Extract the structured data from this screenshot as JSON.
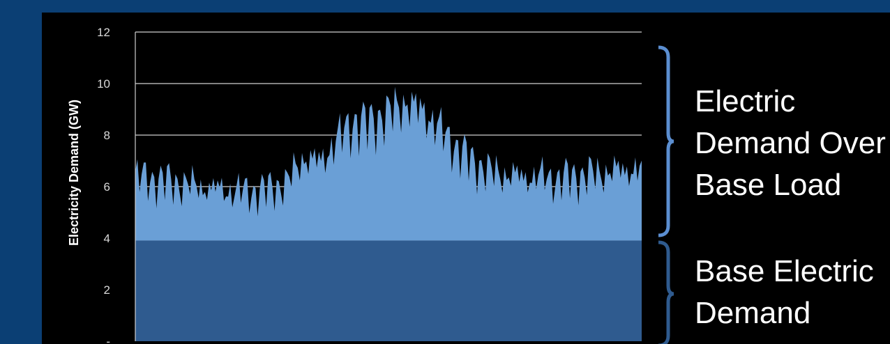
{
  "chart_data": {
    "type": "area",
    "ylabel": "Electricity Demand (GW)",
    "xlabel": "",
    "title": "",
    "ylim": [
      0,
      12
    ],
    "yticks": [
      "12",
      "10",
      "8",
      "6",
      "4",
      "2",
      "-"
    ],
    "grid": true,
    "colors": {
      "background": "#000000",
      "frame": "#0b3f74",
      "peak_area": "#6a9fd6",
      "base_area": "#2f5b8f",
      "gridline": "#cfcfcf",
      "bracket_top": "#5b8ed0",
      "bracket_bottom": "#2f5b8f"
    },
    "series": [
      {
        "role": "base",
        "values": [
          3.9,
          3.9
        ]
      },
      {
        "role": "demand",
        "values": [
          6.6,
          6.5,
          6.4,
          6.3,
          6.2,
          6.1,
          6.0,
          6.0,
          6.1,
          6.4,
          7.4,
          7.2,
          8.2,
          8.8,
          8.8,
          9.2,
          9.6,
          9.3,
          8.6,
          7.8,
          7.2,
          6.8,
          6.7,
          6.6,
          6.6,
          6.5,
          6.6,
          6.7,
          6.8,
          6.9,
          6.9
        ],
        "dip_ratio": 0.82
      }
    ]
  },
  "annotations": {
    "upper_lines": [
      "Electric",
      "Demand Over",
      "Base Load"
    ],
    "lower_lines": [
      "Base Electric",
      "Demand"
    ]
  }
}
